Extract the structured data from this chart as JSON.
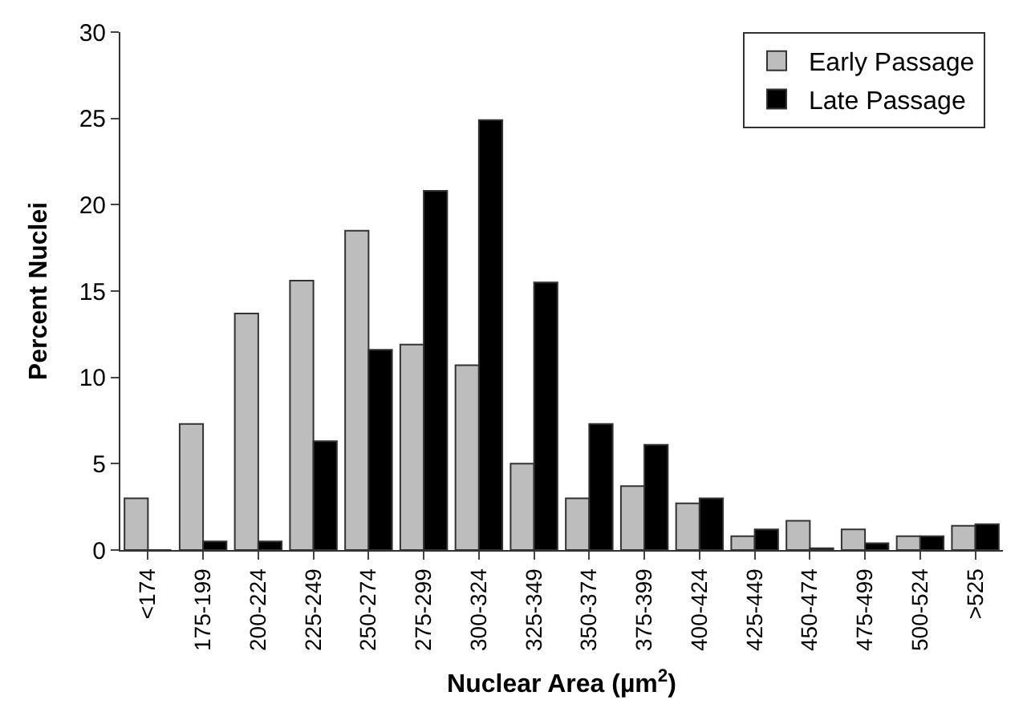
{
  "chart_data": {
    "type": "bar",
    "xlabel": "Nuclear Area (µm$^{2}$)",
    "ylabel": "Percent Nuclei",
    "categories": [
      "<174",
      "175-199",
      "200-224",
      "225-249",
      "250-274",
      "275-299",
      "300-324",
      "325-349",
      "350-374",
      "375-399",
      "400-424",
      "425-449",
      "450-474",
      "475-499",
      "500-524",
      ">525"
    ],
    "series": [
      {
        "name": "Early Passage",
        "color": "#bdbdbd",
        "values": [
          3.0,
          7.3,
          13.7,
          15.6,
          18.5,
          11.9,
          10.7,
          5.0,
          3.0,
          3.7,
          2.7,
          0.8,
          1.7,
          1.2,
          0.8,
          1.4
        ]
      },
      {
        "name": "Late Passage",
        "color": "#000000",
        "values": [
          0,
          0.5,
          0.5,
          6.3,
          11.6,
          20.8,
          24.9,
          15.5,
          7.3,
          6.1,
          3.0,
          1.2,
          0.1,
          0.4,
          0.8,
          1.5
        ]
      }
    ],
    "ylim": [
      0,
      30
    ],
    "yticks": [
      0,
      5,
      10,
      15,
      20,
      25,
      30
    ],
    "legend": "top right"
  }
}
